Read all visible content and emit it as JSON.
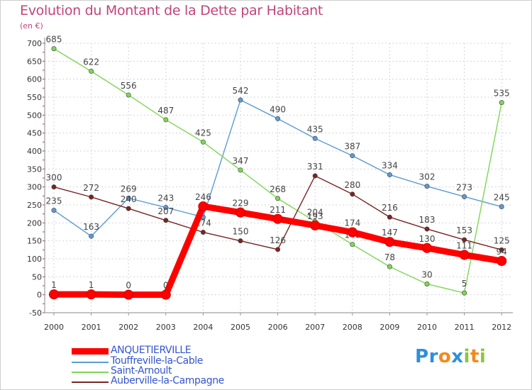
{
  "chart_data": {
    "type": "line",
    "title": "Evolution du Montant de la Dette par Habitant",
    "unit_label": "(en €)",
    "xlabel": "",
    "ylabel": "",
    "ylim": [
      -50,
      700
    ],
    "yticks": [
      -50,
      0,
      50,
      100,
      150,
      200,
      250,
      300,
      350,
      400,
      450,
      500,
      550,
      600,
      650,
      700
    ],
    "x": [
      2000,
      2001,
      2002,
      2003,
      2004,
      2005,
      2006,
      2007,
      2008,
      2009,
      2010,
      2011,
      2012
    ],
    "series": [
      {
        "name": "Touffreville-la-Cable",
        "color": "#5b9bd5",
        "values": [
          235,
          163,
          269,
          243,
          216,
          542,
          490,
          435,
          387,
          334,
          302,
          273,
          245
        ],
        "labels": [
          "235",
          "163",
          "269",
          "243",
          "",
          "542",
          "490",
          "435",
          "387",
          "334",
          "302",
          "273",
          "245"
        ]
      },
      {
        "name": "Saint-Arnoult",
        "color": "#7ed655",
        "values": [
          685,
          622,
          556,
          487,
          425,
          347,
          268,
          204,
          140,
          78,
          30,
          5,
          535
        ],
        "labels": [
          "685",
          "622",
          "556",
          "487",
          "425",
          "347",
          "268",
          "204",
          "140",
          "78",
          "30",
          "5",
          "535"
        ]
      },
      {
        "name": "Auberville-la-Campagne",
        "color": "#7a2424",
        "values": [
          300,
          272,
          240,
          207,
          174,
          150,
          126,
          331,
          280,
          216,
          183,
          153,
          125
        ],
        "labels": [
          "300",
          "272",
          "240",
          "207",
          "174",
          "150",
          "126",
          "331",
          "280",
          "216",
          "183",
          "153",
          "125"
        ]
      },
      {
        "name": "ANQUETIERVILLE",
        "color": "#ff0000",
        "values": [
          1,
          1,
          0,
          0,
          246,
          229,
          211,
          193,
          174,
          147,
          130,
          111,
          94
        ],
        "labels": [
          "1",
          "1",
          "0",
          "0",
          "246",
          "229",
          "211",
          "193",
          "174",
          "147",
          "130",
          "111",
          "94"
        ]
      }
    ],
    "legend": [
      {
        "name": "ANQUETIERVILLE",
        "color": "#ff0000",
        "bold": true
      },
      {
        "name": "Touffreville-la-Cable",
        "color": "#5b9bd5",
        "bold": false
      },
      {
        "name": "Saint-Arnoult",
        "color": "#7ed655",
        "bold": false
      },
      {
        "name": "Auberville-la-Campagne",
        "color": "#7a2424",
        "bold": false
      }
    ],
    "legend_position": "bottom-left",
    "grid": true
  },
  "logo": {
    "letters": [
      {
        "ch": "P",
        "color": "#2e8fd8"
      },
      {
        "ch": "r",
        "color": "#2e8fd8"
      },
      {
        "ch": "o",
        "color": "#f08a1c"
      },
      {
        "ch": "x",
        "color": "#2e8fd8"
      },
      {
        "ch": "i",
        "color": "#8cc63f"
      },
      {
        "ch": "t",
        "color": "#f08a1c"
      },
      {
        "ch": "i",
        "color": "#8cc63f"
      }
    ]
  }
}
